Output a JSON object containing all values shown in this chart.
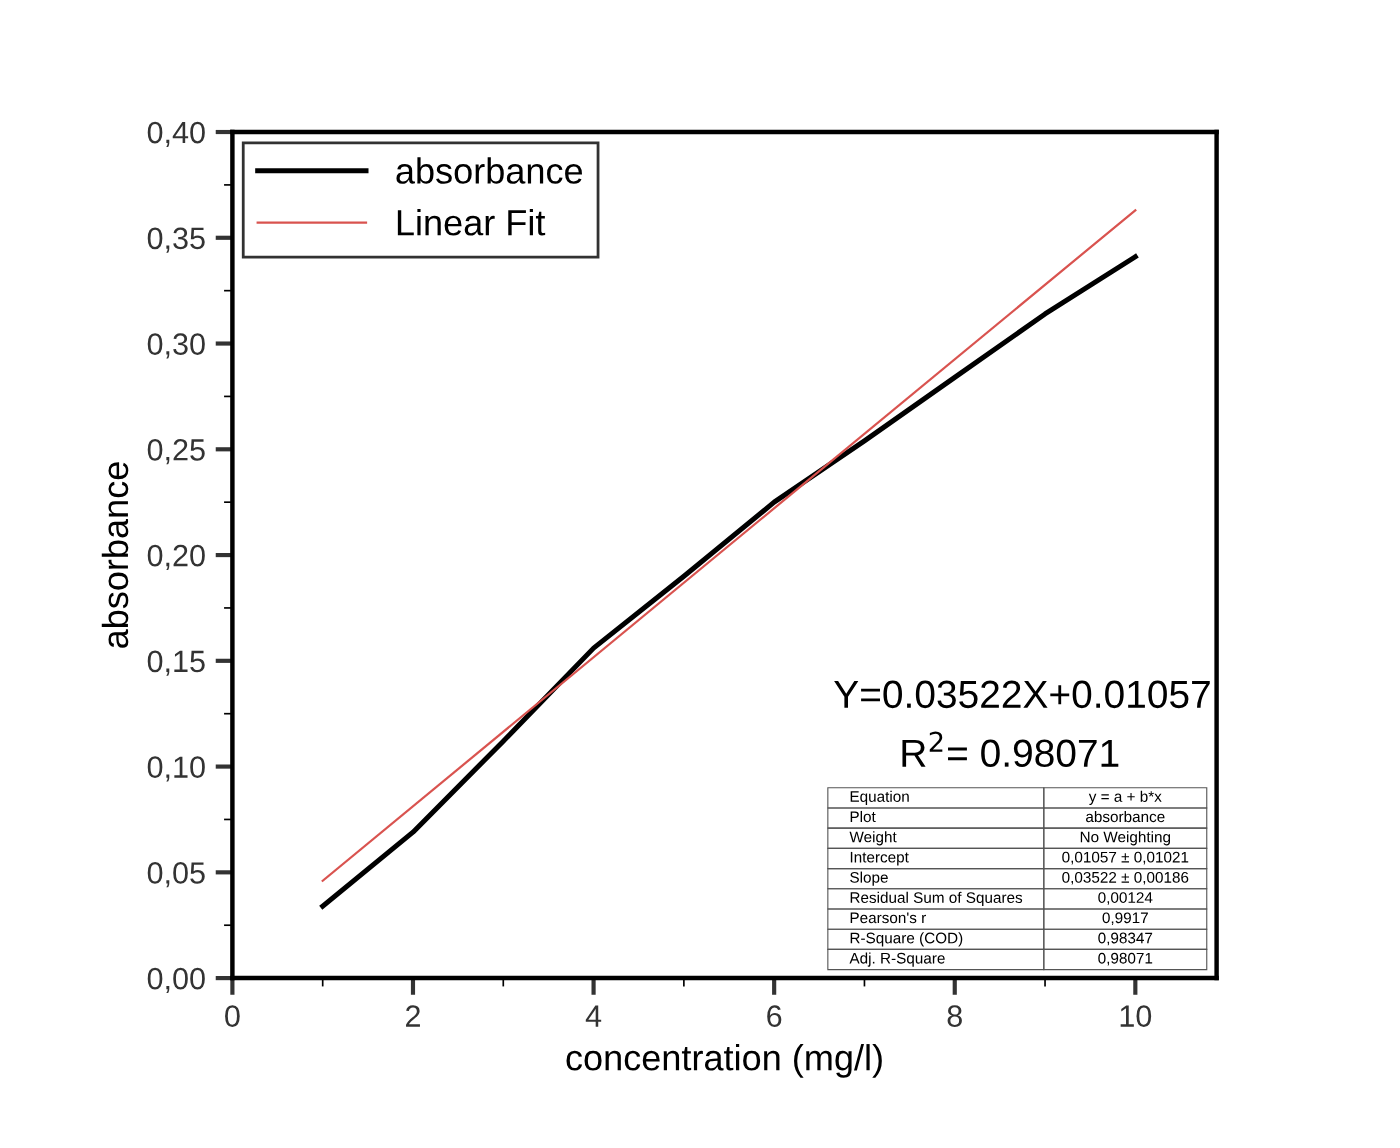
{
  "chart_data": {
    "type": "line",
    "xlabel": "concentration (mg/l)",
    "ylabel": "absorbance",
    "xlim": [
      0,
      10.9
    ],
    "xticks": [
      0,
      2,
      4,
      6,
      8,
      10
    ],
    "ylim": [
      0,
      0.4
    ],
    "yticks": [
      {
        "value": 0,
        "label": "0,00"
      },
      {
        "value": 0.05,
        "label": "0,05"
      },
      {
        "value": 0.1,
        "label": "0,10"
      },
      {
        "value": 0.15,
        "label": "0,15"
      },
      {
        "value": 0.2,
        "label": "0,20"
      },
      {
        "value": 0.25,
        "label": "0,25"
      },
      {
        "value": 0.3,
        "label": "0,30"
      },
      {
        "value": 0.35,
        "label": "0,35"
      },
      {
        "value": 0.4,
        "label": "0,40"
      }
    ],
    "x": [
      1,
      2,
      3,
      4,
      5,
      6,
      7,
      8,
      9,
      10
    ],
    "series": [
      {
        "name": "absorbance",
        "color": "#000000",
        "values": [
          0.034,
          0.069,
          0.112,
          0.156,
          0.19,
          0.225,
          0.254,
          0.284,
          0.314,
          0.341
        ]
      },
      {
        "name": "Linear Fit",
        "color": "#d9534f",
        "x": [
          1,
          10
        ],
        "values": [
          0.046,
          0.363
        ]
      }
    ],
    "legend": "top left",
    "grid": false,
    "annotations": [
      "Y=0.03522X+0.01057",
      "R$^{2}$= 0.98071",
      "Equation",
      "y = a + b*x",
      "Plot",
      "absorbance",
      "Weight",
      "No Weighting",
      "Intercept",
      "0,01057 ± 0,01021",
      "Slope",
      "0,03522 ± 0,00186",
      "Residual Sum of Squares",
      "0,00124",
      "Pearson's r",
      "0,9917",
      "R-Square (COD)",
      "0,98347",
      "Adj. R-Square",
      "0,98071"
    ]
  }
}
